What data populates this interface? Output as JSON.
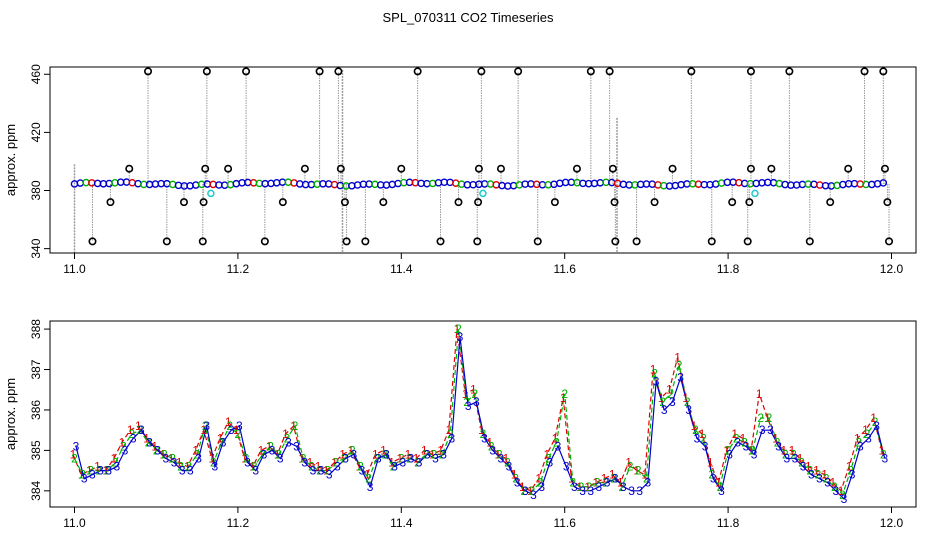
{
  "figure_title": "SPL_070311  CO2 Timeseries",
  "colors": {
    "frame": "#000000",
    "spike_line": "#9a9a9a",
    "outlier_marker": "#000000",
    "series1": "#dd0000",
    "series2": "#00b000",
    "series3": "#0000cc",
    "cyan_marker": "#22cccc",
    "axis_text": "#000000"
  },
  "chart_data": [
    {
      "type": "scatter",
      "title": "",
      "xlabel": "",
      "ylabel": "approx. ppm",
      "xlim": [
        10.97,
        12.03
      ],
      "ylim": [
        337,
        465
      ],
      "xticks": [
        11.0,
        11.2,
        11.4,
        11.6,
        11.8,
        12.0
      ],
      "xtick_labels": [
        "11.0",
        "11.2",
        "11.4",
        "11.6",
        "11.8",
        "12.0"
      ],
      "yticks": [
        340,
        380,
        420,
        460
      ],
      "ytick_labels": [
        "340",
        "380",
        "420",
        "460"
      ],
      "baseline_level": 384.5,
      "baseline_x_range": [
        11.0,
        11.99
      ],
      "outliers_high": [
        {
          "x": 11.09,
          "y": 462
        },
        {
          "x": 11.162,
          "y": 462
        },
        {
          "x": 11.21,
          "y": 462
        },
        {
          "x": 11.3,
          "y": 462
        },
        {
          "x": 11.323,
          "y": 462
        },
        {
          "x": 11.42,
          "y": 462
        },
        {
          "x": 11.498,
          "y": 462
        },
        {
          "x": 11.543,
          "y": 462
        },
        {
          "x": 11.632,
          "y": 462
        },
        {
          "x": 11.655,
          "y": 462
        },
        {
          "x": 11.755,
          "y": 462
        },
        {
          "x": 11.828,
          "y": 462
        },
        {
          "x": 11.875,
          "y": 462
        },
        {
          "x": 11.967,
          "y": 462
        },
        {
          "x": 11.99,
          "y": 462
        }
      ],
      "outliers_mid": [
        {
          "x": 11.067,
          "y": 395
        },
        {
          "x": 11.16,
          "y": 395
        },
        {
          "x": 11.188,
          "y": 395
        },
        {
          "x": 11.282,
          "y": 395
        },
        {
          "x": 11.326,
          "y": 395
        },
        {
          "x": 11.4,
          "y": 395
        },
        {
          "x": 11.495,
          "y": 395
        },
        {
          "x": 11.522,
          "y": 395
        },
        {
          "x": 11.615,
          "y": 395
        },
        {
          "x": 11.659,
          "y": 395
        },
        {
          "x": 11.732,
          "y": 395
        },
        {
          "x": 11.828,
          "y": 395
        },
        {
          "x": 11.853,
          "y": 395
        },
        {
          "x": 11.947,
          "y": 395
        },
        {
          "x": 11.992,
          "y": 395
        }
      ],
      "outliers_low1": [
        {
          "x": 11.044,
          "y": 372
        },
        {
          "x": 11.134,
          "y": 372
        },
        {
          "x": 11.158,
          "y": 372
        },
        {
          "x": 11.255,
          "y": 372
        },
        {
          "x": 11.331,
          "y": 372
        },
        {
          "x": 11.378,
          "y": 372
        },
        {
          "x": 11.47,
          "y": 372
        },
        {
          "x": 11.494,
          "y": 372
        },
        {
          "x": 11.588,
          "y": 372
        },
        {
          "x": 11.661,
          "y": 372
        },
        {
          "x": 11.71,
          "y": 372
        },
        {
          "x": 11.805,
          "y": 372
        },
        {
          "x": 11.826,
          "y": 372
        },
        {
          "x": 11.925,
          "y": 372
        },
        {
          "x": 11.995,
          "y": 372
        }
      ],
      "outliers_low2": [
        {
          "x": 11.022,
          "y": 345
        },
        {
          "x": 11.113,
          "y": 345
        },
        {
          "x": 11.157,
          "y": 345
        },
        {
          "x": 11.233,
          "y": 345
        },
        {
          "x": 11.333,
          "y": 345
        },
        {
          "x": 11.356,
          "y": 345
        },
        {
          "x": 11.448,
          "y": 345
        },
        {
          "x": 11.493,
          "y": 345
        },
        {
          "x": 11.567,
          "y": 345
        },
        {
          "x": 11.662,
          "y": 345
        },
        {
          "x": 11.688,
          "y": 345
        },
        {
          "x": 11.78,
          "y": 345
        },
        {
          "x": 11.824,
          "y": 345
        },
        {
          "x": 11.9,
          "y": 345
        },
        {
          "x": 11.997,
          "y": 345
        }
      ],
      "cyan_points": [
        {
          "x": 11.162,
          "y": 378
        },
        {
          "x": 11.495,
          "y": 378
        },
        {
          "x": 11.828,
          "y": 378
        }
      ],
      "tall_spikes": [
        {
          "x": 11.0,
          "y_top": 398,
          "y_bottom": 337
        },
        {
          "x": 11.328,
          "y_top": 463,
          "y_bottom": 337
        },
        {
          "x": 11.664,
          "y_top": 430,
          "y_bottom": 337
        }
      ]
    },
    {
      "type": "line",
      "title": "",
      "xlabel": "",
      "ylabel": "approx. ppm",
      "xlim": [
        10.97,
        12.03
      ],
      "ylim": [
        383.6,
        388.2
      ],
      "xticks": [
        11.0,
        11.2,
        11.4,
        11.6,
        11.8,
        12.0
      ],
      "xtick_labels": [
        "11.0",
        "11.2",
        "11.4",
        "11.6",
        "11.8",
        "12.0"
      ],
      "yticks": [
        384,
        385,
        386,
        387,
        388
      ],
      "ytick_labels": [
        "384",
        "385",
        "386",
        "387",
        "388"
      ],
      "marker_style": "series index digits (1, 2, 3)",
      "x": [
        11.0,
        11.01,
        11.02,
        11.03,
        11.04,
        11.05,
        11.06,
        11.07,
        11.08,
        11.09,
        11.1,
        11.11,
        11.12,
        11.13,
        11.14,
        11.15,
        11.16,
        11.17,
        11.18,
        11.19,
        11.2,
        11.21,
        11.22,
        11.23,
        11.24,
        11.25,
        11.26,
        11.27,
        11.28,
        11.29,
        11.3,
        11.31,
        11.32,
        11.33,
        11.34,
        11.35,
        11.36,
        11.37,
        11.38,
        11.39,
        11.4,
        11.41,
        11.42,
        11.43,
        11.44,
        11.45,
        11.46,
        11.47,
        11.48,
        11.49,
        11.5,
        11.51,
        11.52,
        11.53,
        11.54,
        11.55,
        11.56,
        11.57,
        11.58,
        11.59,
        11.6,
        11.61,
        11.62,
        11.63,
        11.64,
        11.65,
        11.66,
        11.67,
        11.68,
        11.69,
        11.7,
        11.71,
        11.72,
        11.73,
        11.74,
        11.75,
        11.76,
        11.77,
        11.78,
        11.79,
        11.8,
        11.81,
        11.82,
        11.83,
        11.84,
        11.85,
        11.86,
        11.87,
        11.88,
        11.89,
        11.9,
        11.91,
        11.92,
        11.93,
        11.94,
        11.95,
        11.96,
        11.97,
        11.98,
        11.99
      ],
      "series": [
        {
          "name": "1",
          "values": [
            384.9,
            384.4,
            384.5,
            384.6,
            384.5,
            384.8,
            385.2,
            385.5,
            385.6,
            385.3,
            385.1,
            384.9,
            384.8,
            384.7,
            384.6,
            385.0,
            385.5,
            384.8,
            385.3,
            385.7,
            385.5,
            384.8,
            384.6,
            385.0,
            385.1,
            384.9,
            385.4,
            385.6,
            384.8,
            384.7,
            384.6,
            384.5,
            384.7,
            384.9,
            385.0,
            384.6,
            384.4,
            384.9,
            385.0,
            384.7,
            384.8,
            384.9,
            384.8,
            385.0,
            384.9,
            385.0,
            385.5,
            388.0,
            386.4,
            386.5,
            385.5,
            385.2,
            384.9,
            384.8,
            384.4,
            384.1,
            384.0,
            384.3,
            384.9,
            385.3,
            386.3,
            384.3,
            384.1,
            384.1,
            384.2,
            384.3,
            384.4,
            384.2,
            384.7,
            384.5,
            384.4,
            387.0,
            386.3,
            386.5,
            387.3,
            386.3,
            385.6,
            385.4,
            384.7,
            384.2,
            385.0,
            385.4,
            385.3,
            385.0,
            386.4,
            385.8,
            385.3,
            385.0,
            385.0,
            384.8,
            384.6,
            384.5,
            384.4,
            384.2,
            384.0,
            384.6,
            385.3,
            385.5,
            385.8,
            385.0
          ]
        },
        {
          "name": "2",
          "values": [
            384.8,
            384.4,
            384.5,
            384.5,
            384.5,
            384.7,
            385.1,
            385.4,
            385.5,
            385.2,
            385.0,
            384.9,
            384.8,
            384.6,
            384.6,
            384.9,
            385.6,
            384.7,
            385.2,
            385.6,
            385.4,
            384.8,
            384.6,
            384.9,
            385.1,
            384.9,
            385.3,
            385.6,
            384.8,
            384.6,
            384.5,
            384.5,
            384.7,
            384.8,
            385.0,
            384.6,
            384.3,
            384.8,
            384.9,
            384.6,
            384.8,
            384.8,
            384.7,
            384.9,
            384.9,
            384.9,
            385.4,
            388.0,
            386.2,
            386.4,
            385.4,
            385.1,
            384.9,
            384.7,
            384.3,
            384.0,
            384.0,
            384.2,
            384.8,
            385.2,
            386.4,
            384.2,
            384.1,
            384.1,
            384.2,
            384.2,
            384.3,
            384.1,
            384.6,
            384.5,
            384.3,
            386.9,
            386.2,
            386.4,
            387.1,
            386.2,
            385.5,
            385.3,
            384.4,
            384.1,
            385.0,
            385.3,
            385.2,
            385.0,
            385.8,
            385.8,
            385.2,
            384.9,
            384.9,
            384.7,
            384.5,
            384.4,
            384.3,
            384.1,
            383.9,
            384.5,
            385.2,
            385.4,
            385.7,
            384.9
          ]
        },
        {
          "name": "3",
          "values": [
            385.1,
            384.3,
            384.4,
            384.5,
            384.5,
            384.6,
            385.0,
            385.3,
            385.5,
            385.2,
            385.0,
            384.8,
            384.7,
            384.5,
            384.5,
            384.8,
            385.6,
            384.6,
            385.2,
            385.5,
            385.6,
            384.7,
            384.5,
            384.9,
            385.0,
            384.8,
            385.2,
            385.1,
            384.7,
            384.5,
            384.5,
            384.4,
            384.6,
            384.8,
            384.9,
            384.5,
            384.1,
            384.8,
            384.9,
            384.6,
            384.7,
            384.8,
            384.7,
            384.9,
            384.8,
            384.9,
            385.3,
            387.8,
            386.1,
            386.2,
            385.3,
            385.0,
            384.8,
            384.6,
            384.2,
            384.0,
            383.9,
            384.1,
            384.7,
            385.1,
            384.6,
            384.1,
            384.0,
            384.0,
            384.1,
            384.2,
            384.3,
            384.1,
            384.0,
            384.0,
            384.2,
            386.7,
            386.0,
            386.2,
            386.8,
            386.0,
            385.3,
            385.1,
            384.3,
            384.0,
            384.9,
            385.2,
            385.1,
            384.9,
            385.5,
            385.5,
            385.1,
            384.8,
            384.8,
            384.6,
            384.4,
            384.3,
            384.2,
            384.0,
            383.8,
            384.4,
            385.1,
            385.3,
            385.6,
            384.8
          ]
        }
      ]
    }
  ]
}
